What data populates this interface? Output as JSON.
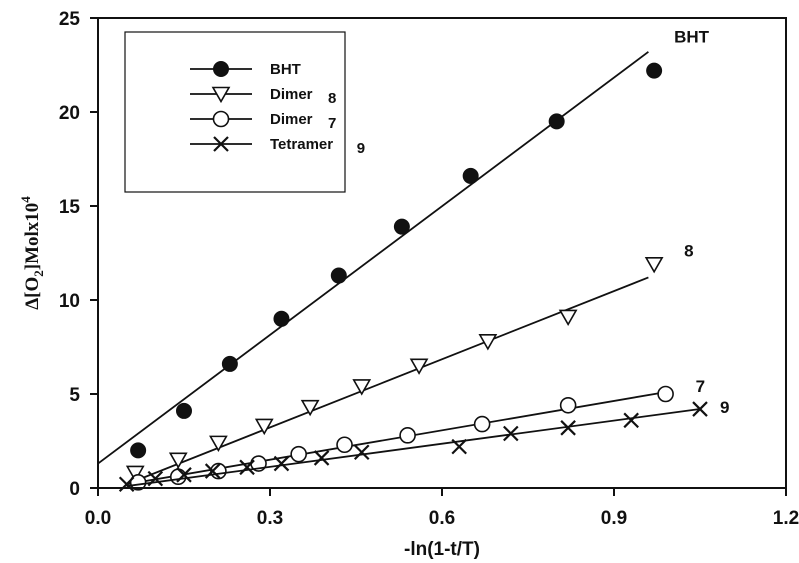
{
  "chart_data": {
    "type": "scatter",
    "xlabel": "-ln(1-t/T)",
    "ylabel_parts": {
      "delta": "Δ",
      "open": "[O",
      "sub": "2",
      "close": "]Molx10",
      "sup": "4"
    },
    "xlim": [
      0.0,
      1.2
    ],
    "ylim": [
      0,
      25
    ],
    "x_ticks": [
      0.0,
      0.3,
      0.6,
      0.9,
      1.2
    ],
    "x_tick_labels": [
      "0.0",
      "0.3",
      "0.6",
      "0.9",
      "1.2"
    ],
    "y_ticks": [
      0,
      5,
      10,
      15,
      20,
      25
    ],
    "y_tick_labels": [
      "0",
      "5",
      "10",
      "15",
      "20",
      "25"
    ],
    "grid": false,
    "legend_position": "top-left",
    "series": [
      {
        "name": "BHT",
        "legend_number": "",
        "label": "BHT",
        "marker": "filled-circle",
        "points": [
          [
            0.07,
            2.0
          ],
          [
            0.15,
            4.1
          ],
          [
            0.23,
            6.6
          ],
          [
            0.32,
            9.0
          ],
          [
            0.42,
            11.3
          ],
          [
            0.53,
            13.9
          ],
          [
            0.65,
            16.6
          ],
          [
            0.8,
            19.5
          ],
          [
            0.97,
            22.2
          ]
        ],
        "fit": [
          [
            0.0,
            1.3
          ],
          [
            0.96,
            23.2
          ]
        ]
      },
      {
        "name": "Dimer",
        "legend_number": "8",
        "label": "8",
        "marker": "open-triangle-down",
        "points": [
          [
            0.065,
            0.8
          ],
          [
            0.14,
            1.5
          ],
          [
            0.21,
            2.4
          ],
          [
            0.29,
            3.3
          ],
          [
            0.37,
            4.3
          ],
          [
            0.46,
            5.4
          ],
          [
            0.56,
            6.5
          ],
          [
            0.68,
            7.8
          ],
          [
            0.82,
            9.1
          ],
          [
            0.97,
            11.9
          ]
        ],
        "fit": [
          [
            0.05,
            0.2
          ],
          [
            0.96,
            11.2
          ]
        ]
      },
      {
        "name": "Dimer",
        "legend_number": "7",
        "label": "7",
        "marker": "open-circle",
        "points": [
          [
            0.07,
            0.3
          ],
          [
            0.14,
            0.6
          ],
          [
            0.21,
            0.9
          ],
          [
            0.28,
            1.3
          ],
          [
            0.35,
            1.8
          ],
          [
            0.43,
            2.3
          ],
          [
            0.54,
            2.8
          ],
          [
            0.67,
            3.4
          ],
          [
            0.82,
            4.4
          ],
          [
            0.99,
            5.0
          ]
        ],
        "fit": [
          [
            0.05,
            0.2
          ],
          [
            0.99,
            5.1
          ]
        ]
      },
      {
        "name": "Tetramer",
        "legend_number": "9",
        "label": "9",
        "marker": "cross",
        "points": [
          [
            0.05,
            0.2
          ],
          [
            0.1,
            0.5
          ],
          [
            0.15,
            0.7
          ],
          [
            0.2,
            0.9
          ],
          [
            0.26,
            1.1
          ],
          [
            0.32,
            1.3
          ],
          [
            0.39,
            1.6
          ],
          [
            0.46,
            1.9
          ],
          [
            0.63,
            2.2
          ],
          [
            0.72,
            2.9
          ],
          [
            0.82,
            3.2
          ],
          [
            0.93,
            3.6
          ],
          [
            1.05,
            4.2
          ]
        ],
        "fit": [
          [
            0.05,
            0.1
          ],
          [
            1.05,
            4.2
          ]
        ]
      }
    ]
  }
}
